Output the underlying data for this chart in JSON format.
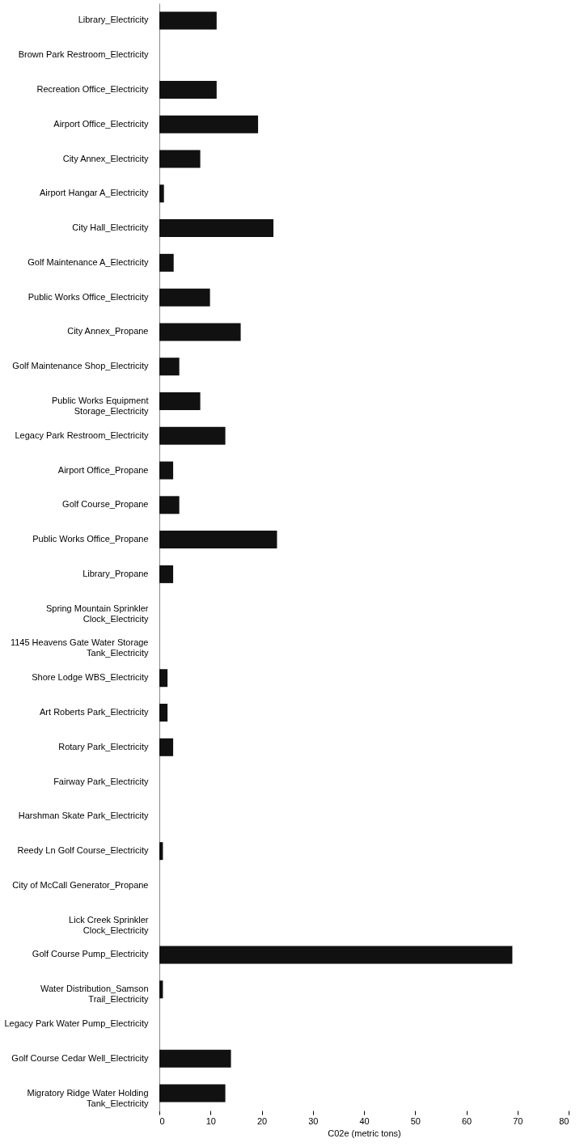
{
  "chart_data": {
    "type": "bar",
    "orientation": "horizontal",
    "xlabel": "C02e (metric tons)",
    "categories": [
      "Library_Electricity",
      "Brown Park Restroom_Electricity",
      "Recreation Office_Electricity",
      "Airport Office_Electricity",
      "City Annex_Electricity",
      "Airport Hangar A_Electricity",
      "City Hall_Electricity",
      "Golf Maintenance A_Electricity",
      "Public Works Office_Electricity",
      "City Annex_Propane",
      "Golf Maintenance Shop_Electricity",
      "Public Works Equipment Storage_Electricity",
      "Legacy Park Restroom_Electricity",
      "Airport Office_Propane",
      "Golf Course_Propane",
      "Public Works Office_Propane",
      "Library_Propane",
      "Spring Mountain Sprinkler Clock_Electricity",
      "1145 Heavens Gate Water Storage Tank_Electricity",
      "Shore Lodge WBS_Electricity",
      "Art Roberts Park_Electricity",
      "Rotary Park_Electricity",
      "Fairway Park_Electricity",
      "Harshman Skate Park_Electricity",
      "Reedy Ln Golf Course_Electricity",
      "City of McCall Generator_Propane",
      "Lick Creek Sprinkler Clock_Electricity",
      "Golf Course Pump_Electricity",
      "Water Distribution_Samson Trail_Electricity",
      "Legacy Park Water Pump_Electricity",
      "Golf Course Cedar Well_Electricity",
      "Migratory Ridge Water Holding Tank_Electricity"
    ],
    "values": [
      11.2,
      0,
      11.2,
      19.3,
      8,
      0.9,
      22.3,
      2.8,
      9.9,
      15.9,
      3.9,
      8,
      12.9,
      2.7,
      3.9,
      23,
      2.7,
      0,
      0,
      1.6,
      1.6,
      2.7,
      0,
      0,
      0.7,
      0,
      0,
      69,
      0.7,
      0,
      14,
      12.9
    ],
    "color": "#111111",
    "xlim": [
      0,
      80
    ],
    "xticks": [
      0,
      10,
      20,
      30,
      40,
      50,
      60,
      70,
      80
    ]
  }
}
